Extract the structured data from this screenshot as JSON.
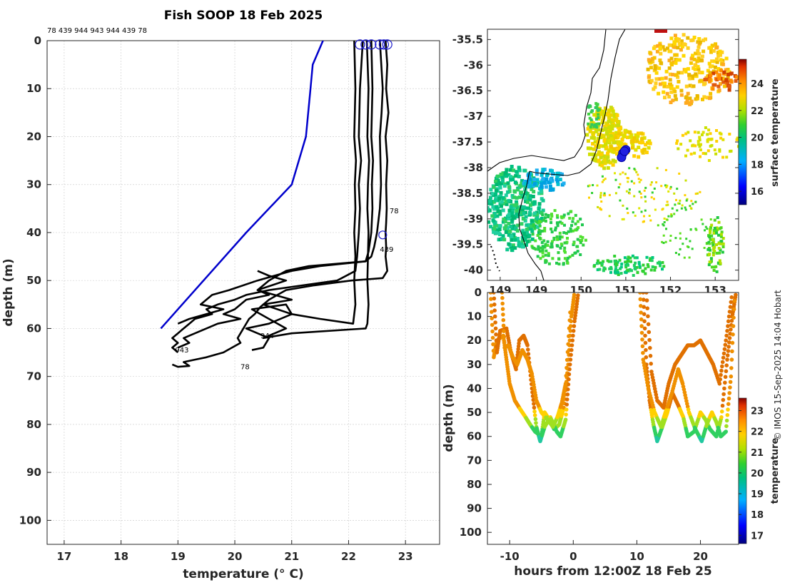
{
  "chart_data": [
    {
      "type": "line",
      "title": "Fish SOOP 18 Feb 2025",
      "subtitle": "78 439 944 943 944 439 78",
      "xlabel": "temperature (° C)",
      "ylabel": "depth (m)",
      "xlim": [
        16.7,
        23.6
      ],
      "ylim": [
        105,
        0
      ],
      "xticks": [
        "17",
        "18",
        "19",
        "20",
        "21",
        "22",
        "23"
      ],
      "yticks": [
        "0",
        "10",
        "20",
        "30",
        "40",
        "50",
        "60",
        "70",
        "80",
        "90",
        "100"
      ],
      "grid": true,
      "series": [
        {
          "color": "#0000cc",
          "temperature": [
            21.55,
            21.37,
            21.33,
            21.25,
            21.0,
            20.2,
            18.7
          ],
          "depth": [
            0,
            5,
            10,
            20,
            30,
            40,
            60
          ]
        }
      ],
      "profiles": [
        {
          "label": "78",
          "color": "#000000",
          "temperature": [
            22.65,
            22.68,
            22.66,
            22.7,
            22.65,
            22.68,
            22.66,
            22.67,
            22.66,
            22.65,
            22.66,
            22.65,
            22.68,
            22.6,
            22.05,
            21.4,
            20.9,
            20.6,
            20.45,
            20.35,
            20.25,
            20.15,
            20.1,
            20.05,
            20.1,
            19.95,
            19.8,
            19.5,
            19.3,
            19.1,
            19.2,
            19.0,
            18.9
          ],
          "depth": [
            0,
            5,
            10,
            15,
            20,
            25,
            30,
            35,
            38,
            40,
            43,
            45,
            48,
            49.5,
            50,
            51,
            52,
            54,
            55.5,
            57,
            58,
            60,
            61,
            62,
            63,
            64,
            65,
            66,
            66.5,
            67,
            67.8,
            68,
            67.5
          ]
        },
        {
          "label": "439",
          "color": "#000000",
          "temperature": [
            22.55,
            22.6,
            22.58,
            22.55,
            22.56,
            22.57,
            22.55,
            22.5,
            22.45,
            22.4,
            22.3,
            21.3,
            20.9,
            20.6,
            20.4,
            20.6,
            20.2,
            20.0,
            19.8,
            20.1,
            19.7,
            19.5,
            19.3,
            19.1,
            19.2,
            19.0
          ],
          "depth": [
            0,
            10,
            15,
            20,
            25,
            30,
            35,
            40,
            43,
            45,
            46,
            47,
            48,
            50,
            52,
            53,
            54,
            56,
            57,
            58,
            59,
            60,
            61,
            62,
            63,
            64
          ]
        },
        {
          "label": "944",
          "color": "#000000",
          "temperature": [
            22.32,
            22.35,
            22.33,
            22.36,
            22.34,
            22.33,
            22.35,
            22.34,
            22.33,
            22.35,
            22.33,
            22.3,
            21.0,
            20.5,
            20.9,
            20.6,
            20.3,
            20.9,
            21.0,
            20.6,
            20.2,
            20.6,
            20.5,
            20.3
          ],
          "depth": [
            0,
            10,
            20,
            25,
            30,
            35,
            40,
            45,
            50,
            55,
            59,
            60,
            61,
            62,
            60,
            58,
            56,
            55,
            57,
            59,
            60,
            62,
            64,
            64.5
          ]
        },
        {
          "label": "943",
          "color": "#000000",
          "temperature": [
            22.25,
            22.2,
            22.18,
            22.22,
            22.18,
            22.2,
            22.18,
            22.15,
            22.12,
            21.8,
            21.2,
            20.6,
            20.2,
            20.0,
            19.7,
            19.5,
            19.6,
            19.3,
            19.2,
            19.1,
            19.0,
            18.9,
            19.0,
            18.9,
            19.0
          ],
          "depth": [
            0,
            10,
            20,
            25,
            30,
            35,
            40,
            45,
            48,
            50,
            51,
            52,
            53,
            54,
            55,
            56,
            57,
            58,
            59,
            60,
            61,
            62,
            63,
            64,
            65
          ]
        },
        {
          "label": "944",
          "color": "#000000",
          "temperature": [
            22.1,
            22.12,
            22.1,
            22.13,
            22.11,
            22.12,
            22.1,
            22.12,
            22.1,
            22.12,
            22.08,
            21.5,
            21.0,
            20.5,
            21.0,
            20.7,
            20.4,
            20.9,
            20.6,
            20.4
          ],
          "depth": [
            0,
            10,
            20,
            25,
            30,
            35,
            40,
            45,
            50,
            55,
            59,
            58,
            57,
            55,
            54,
            53,
            52,
            50,
            49,
            48
          ]
        },
        {
          "label": "439",
          "color": "#000000",
          "temperature": [
            22.4,
            22.42,
            22.4,
            22.43,
            22.41,
            22.42,
            22.4,
            22.35,
            22.3,
            21.5,
            21.0,
            20.4,
            19.9,
            19.6,
            19.4,
            19.8,
            19.5,
            19.2,
            19.0
          ],
          "depth": [
            0,
            10,
            20,
            25,
            30,
            35,
            40,
            44,
            46,
            47,
            48,
            50,
            52,
            53,
            55,
            56,
            57,
            58,
            59
          ]
        }
      ],
      "profile_labels": [
        {
          "text": "78",
          "temperature": 22.72,
          "depth": 36
        },
        {
          "text": "439",
          "temperature": 22.55,
          "depth": 44
        },
        {
          "text": "944",
          "temperature": 20.45,
          "depth": 62
        },
        {
          "text": "943",
          "temperature": 18.95,
          "depth": 65
        },
        {
          "text": "78",
          "temperature": 20.1,
          "depth": 68.5
        }
      ],
      "surface_markers_temperature": [
        22.2,
        22.3,
        22.4,
        22.55,
        22.62,
        22.68
      ],
      "bottom_marker": {
        "temperature": 22.6,
        "depth": 40.5
      }
    },
    {
      "type": "heatmap",
      "xlabel": "",
      "ylabel": "",
      "xlim": [
        147.7,
        153.6
      ],
      "ylim": [
        -40.2,
        -35.3
      ],
      "xticks": [
        "149",
        "149",
        "150",
        "151",
        "152",
        "153"
      ],
      "yticks": [
        "-35.5",
        "-36",
        "-36.5",
        "-37",
        "-37.5",
        "-38",
        "-38.5",
        "-39",
        "-39.5",
        "-40"
      ],
      "colorbar": {
        "label": "surface temperature",
        "ticks": [
          "16",
          "18",
          "20",
          "22",
          "24"
        ],
        "min": 15,
        "max": 25.8
      },
      "track_points": [
        {
          "lon": 150.95,
          "lat": -37.65
        },
        {
          "lon": 150.88,
          "lat": -37.72
        },
        {
          "lon": 150.85,
          "lat": -37.8
        },
        {
          "lon": 150.92,
          "lat": -37.68
        }
      ]
    },
    {
      "type": "scatter",
      "xlabel": "hours from 12:00Z 18 Feb 25",
      "ylabel": "depth (m)",
      "xlim": [
        -13.5,
        26
      ],
      "ylim": [
        105,
        0
      ],
      "xticks": [
        "-10",
        "0",
        "10",
        "20"
      ],
      "yticks": [
        "0",
        "10",
        "20",
        "30",
        "40",
        "50",
        "60",
        "70",
        "80",
        "90",
        "100"
      ],
      "grid": false,
      "colorbar": {
        "label": "temperature",
        "ticks": [
          "17",
          "18",
          "19",
          "20",
          "21",
          "22",
          "23"
        ],
        "min": 16.6,
        "max": 23.6
      },
      "tracks": [
        {
          "hours": [
            -13,
            -12.5,
            -12,
            -11,
            -10.5,
            -10,
            -9.2,
            -8.5,
            -7.5,
            -6.8,
            -6,
            -5,
            -4.5,
            -3.8,
            -3,
            -2.2,
            -1.5,
            -0.8,
            -0.3,
            0.2
          ],
          "depth": [
            0,
            27,
            20,
            18,
            28,
            38,
            45,
            48,
            52,
            55,
            58,
            60,
            50,
            53,
            57,
            55,
            48,
            30,
            10,
            0
          ]
        },
        {
          "hours": [
            -12.5,
            -12,
            -11.5,
            -10.5,
            -9.8,
            -9,
            -8.5,
            -7.8,
            -7.2,
            -6.5,
            -5.8,
            -5.2,
            -4.5,
            -3.6,
            -2.6,
            -2,
            -1.2,
            -0.6,
            0.2,
            0.8
          ],
          "depth": [
            0,
            25,
            16,
            15,
            25,
            32,
            20,
            18,
            22,
            40,
            56,
            62,
            56,
            52,
            58,
            60,
            53,
            32,
            12,
            0
          ]
        },
        {
          "hours": [
            -11.2,
            -10.8,
            -10.2,
            -9.5,
            -8.8,
            -8,
            -7.2,
            -6.5,
            -5.8,
            -5,
            -4,
            -3.2,
            -2.5,
            -1.8,
            -1.2,
            -0.4
          ],
          "depth": [
            0,
            23,
            22,
            27,
            30,
            24,
            28,
            34,
            45,
            50,
            53,
            56,
            52,
            46,
            38,
            5
          ]
        },
        {
          "hours": [
            11,
            11.5,
            12,
            12.6,
            13.2,
            14,
            14.8,
            15.6,
            16.5,
            17.3,
            18,
            19,
            20,
            20.8,
            21.5,
            22.5,
            23.3,
            24.2,
            25,
            25.6
          ],
          "depth": [
            0,
            30,
            45,
            55,
            62,
            56,
            50,
            42,
            47,
            52,
            60,
            58,
            50,
            53,
            57,
            60,
            52,
            28,
            10,
            0
          ]
        },
        {
          "hours": [
            10.5,
            11,
            11.8,
            12.8,
            13.8,
            14.5,
            15.5,
            16.5,
            17.2,
            18.2,
            19.2,
            20.2,
            21,
            21.8,
            22.5,
            23.2,
            24,
            24.8,
            25.4
          ],
          "depth": [
            0,
            28,
            40,
            50,
            56,
            50,
            42,
            32,
            38,
            50,
            57,
            62,
            55,
            50,
            54,
            60,
            58,
            35,
            0
          ]
        },
        {
          "hours": [
            11.5,
            12.3,
            13.2,
            14.2,
            15,
            16,
            17,
            18,
            19,
            20,
            21,
            22,
            23,
            24,
            25
          ],
          "depth": [
            0,
            33,
            45,
            48,
            38,
            30,
            26,
            22,
            22,
            20,
            25,
            30,
            38,
            20,
            0
          ]
        }
      ]
    }
  ],
  "credit": "© IMOS 15-Sep-2025 14:04 Hobart"
}
